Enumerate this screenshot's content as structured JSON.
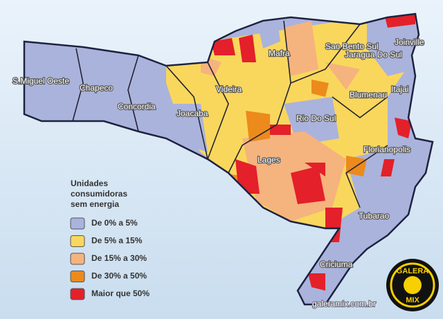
{
  "map": {
    "cities": [
      "S.Miguel Oeste",
      "Chapeco",
      "Concordia",
      "Joacaba",
      "Videira",
      "Mafra",
      "Sao Bento Sul",
      "Jaragua Do Sul",
      "Joinville",
      "Blumenau",
      "Itajai",
      "Rio Do Sul",
      "Florianopolis",
      "Lages",
      "Tubarao",
      "Criciuma"
    ],
    "legend": {
      "title": [
        "Unidades",
        "consumidoras",
        "sem energia"
      ],
      "items": [
        {
          "label": "De 0% a 5%",
          "color": "#aab3dc"
        },
        {
          "label": "De 5% a 15%",
          "color": "#f9d75c"
        },
        {
          "label": "De 15% a 30%",
          "color": "#f5b37e"
        },
        {
          "label": "De 30% a 50%",
          "color": "#ec8a1c"
        },
        {
          "label": "Maior que 50%",
          "color": "#e4202a"
        }
      ]
    },
    "watermark": "galeramix.com.br",
    "logo": {
      "top": "GALERA",
      "bottom": "MIX"
    }
  }
}
